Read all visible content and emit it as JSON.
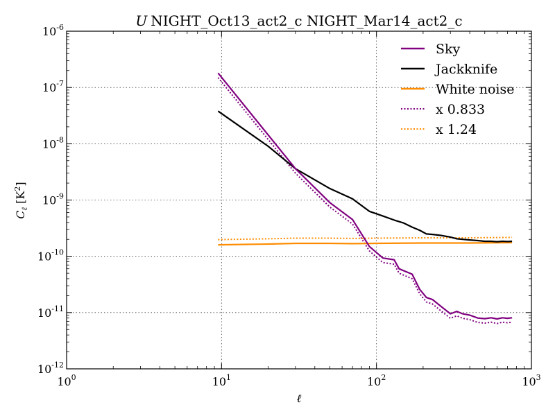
{
  "chart_data": {
    "type": "line",
    "title_italic": "U",
    "title": "NIGHT_Oct13_act2_c NIGHT_Mar14_act2_c",
    "xlabel": "ℓ",
    "ylabel_main": "C",
    "ylabel_sub": "ℓ",
    "ylabel_unit_pre": " [K",
    "ylabel_unit_sup": "2",
    "ylabel_unit_post": "]",
    "x_scale": "log",
    "y_scale": "log",
    "xlim": [
      1,
      1000
    ],
    "ylim": [
      1e-12,
      1e-06
    ],
    "x_ticks": [
      {
        "base": "10",
        "exp": "0",
        "value": 1
      },
      {
        "base": "10",
        "exp": "1",
        "value": 10
      },
      {
        "base": "10",
        "exp": "2",
        "value": 100
      },
      {
        "base": "10",
        "exp": "3",
        "value": 1000
      }
    ],
    "y_ticks": [
      {
        "base": "10",
        "exp": "-12",
        "value": 1e-12
      },
      {
        "base": "10",
        "exp": "-11",
        "value": 1e-11
      },
      {
        "base": "10",
        "exp": "-10",
        "value": 1e-10
      },
      {
        "base": "10",
        "exp": "-9",
        "value": 1e-09
      },
      {
        "base": "10",
        "exp": "-8",
        "value": 1e-08
      },
      {
        "base": "10",
        "exp": "-7",
        "value": 1e-07
      },
      {
        "base": "10",
        "exp": "-6",
        "value": 1e-06
      }
    ],
    "grid": true,
    "legend_position": "top-right",
    "series": [
      {
        "name": "Sky",
        "color": "#800080",
        "style": "solid",
        "x": [
          9.5,
          30,
          50,
          70,
          90,
          110,
          130,
          140,
          170,
          190,
          210,
          230,
          260,
          300,
          330,
          360,
          400,
          450,
          500,
          550,
          600,
          650,
          700,
          750
        ],
        "y": [
          1.8e-07,
          3.6e-09,
          9e-10,
          4.5e-10,
          1.5e-10,
          9.3e-11,
          8.7e-11,
          6e-11,
          4.8e-11,
          2.6e-11,
          1.85e-11,
          1.7e-11,
          1.3e-11,
          9.5e-12,
          1.05e-11,
          9.5e-12,
          9e-12,
          8e-12,
          7.8e-12,
          8.1e-12,
          7.7e-12,
          8.1e-12,
          7.9e-12,
          8.1e-12
        ]
      },
      {
        "name": "Jackknife",
        "color": "#000000",
        "style": "solid",
        "x": [
          9.5,
          20,
          30,
          50,
          70,
          90,
          110,
          130,
          150,
          170,
          190,
          210,
          230,
          260,
          300,
          330,
          360,
          400,
          450,
          500,
          550,
          600,
          650,
          700,
          750
        ],
        "y": [
          3.8e-08,
          9e-09,
          3.6e-09,
          1.6e-09,
          1.05e-09,
          6.3e-10,
          5.2e-10,
          4.4e-10,
          3.9e-10,
          3.3e-10,
          2.9e-10,
          2.5e-10,
          2.45e-10,
          2.35e-10,
          2.2e-10,
          2.05e-10,
          2e-10,
          1.95e-10,
          1.9e-10,
          1.85e-10,
          1.85e-10,
          1.82e-10,
          1.85e-10,
          1.83e-10,
          1.85e-10
        ]
      },
      {
        "name": "White noise",
        "color": "#ff8c00",
        "style": "solid",
        "x": [
          9.5,
          20,
          30,
          50,
          70,
          100,
          200,
          400,
          750
        ],
        "y": [
          1.6e-10,
          1.65e-10,
          1.7e-10,
          1.7e-10,
          1.68e-10,
          1.7e-10,
          1.72e-10,
          1.72e-10,
          1.75e-10
        ]
      },
      {
        "name": "x 0.833",
        "color": "#800080",
        "style": "dotted",
        "x": [
          9.5,
          30,
          50,
          70,
          90,
          110,
          130,
          140,
          170,
          190,
          210,
          230,
          260,
          300,
          330,
          360,
          400,
          450,
          500,
          550,
          600,
          650,
          700,
          750
        ],
        "y": [
          1.5e-07,
          3e-09,
          7.5e-10,
          3.75e-10,
          1.25e-10,
          7.75e-11,
          7.25e-11,
          5e-11,
          4e-11,
          2.17e-11,
          1.54e-11,
          1.42e-11,
          1.08e-11,
          7.9e-12,
          8.75e-12,
          7.9e-12,
          7.5e-12,
          6.7e-12,
          6.5e-12,
          6.75e-12,
          6.4e-12,
          6.75e-12,
          6.6e-12,
          6.75e-12
        ]
      },
      {
        "name": "x 1.24",
        "color": "#ff8c00",
        "style": "dotted",
        "x": [
          9.5,
          20,
          30,
          50,
          70,
          100,
          200,
          400,
          750
        ],
        "y": [
          1.98e-10,
          2.05e-10,
          2.1e-10,
          2.1e-10,
          2.08e-10,
          2.1e-10,
          2.13e-10,
          2.13e-10,
          2.17e-10
        ]
      }
    ]
  }
}
